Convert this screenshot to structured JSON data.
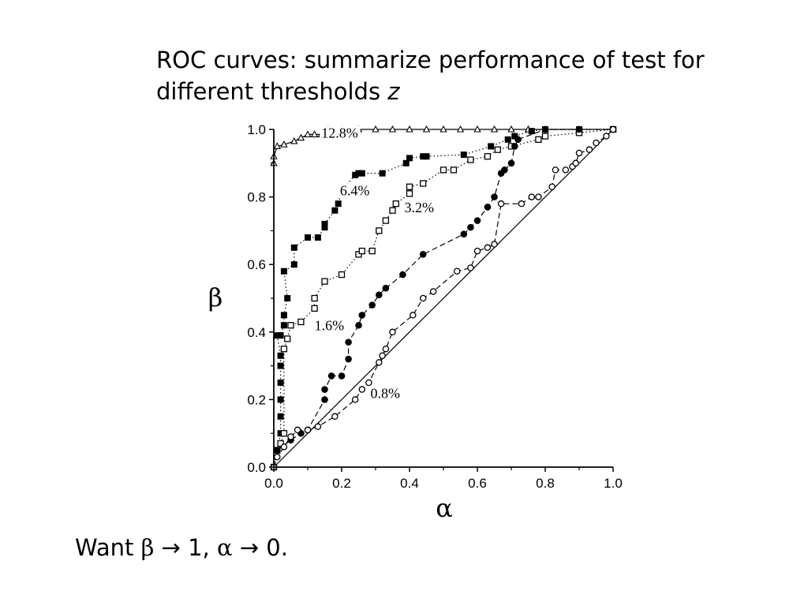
{
  "title": {
    "text": "ROC curves: summarize performance of test for different thresholds ",
    "var": "z"
  },
  "note": {
    "prefix": "Want ",
    "beta": "β",
    "mid": " → 1, ",
    "alpha": "α",
    "suffix": " → 0."
  },
  "chart_data": {
    "type": "line",
    "xlabel": "α",
    "ylabel": "β",
    "xlim": [
      0,
      1
    ],
    "ylim": [
      0,
      1
    ],
    "xticks": [
      "0.0",
      "0.2",
      "0.4",
      "0.6",
      "0.8",
      "1.0"
    ],
    "yticks": [
      "0.0",
      "0.2",
      "0.4",
      "0.6",
      "0.8",
      "1.0"
    ],
    "grid": false,
    "diagonal": true,
    "series": [
      {
        "label": "12.8%",
        "marker": "open-triangle",
        "line": "solid",
        "label_at": [
          0.14,
          0.975
        ],
        "points": [
          [
            0,
            0.9
          ],
          [
            0,
            0.92
          ],
          [
            0.01,
            0.95
          ],
          [
            0.03,
            0.955
          ],
          [
            0.06,
            0.965
          ],
          [
            0.08,
            0.975
          ],
          [
            0.1,
            0.985
          ],
          [
            0.12,
            0.985
          ],
          [
            0.14,
            0.985
          ],
          [
            0.15,
            0.99
          ],
          [
            0.16,
            1.0
          ],
          [
            0.2,
            1.0
          ],
          [
            0.25,
            1.0
          ],
          [
            0.3,
            1.0
          ],
          [
            0.35,
            1.0
          ],
          [
            0.4,
            1.0
          ],
          [
            0.45,
            1.0
          ],
          [
            0.5,
            1.0
          ],
          [
            0.55,
            1.0
          ],
          [
            0.6,
            1.0
          ],
          [
            0.65,
            1.0
          ],
          [
            0.7,
            1.0
          ],
          [
            0.75,
            1.0
          ],
          [
            0.8,
            1.0
          ],
          [
            0.9,
            1.0
          ],
          [
            1.0,
            1.0
          ]
        ]
      },
      {
        "label": "6.4%",
        "marker": "filled-square",
        "line": "dotted",
        "label_at": [
          0.195,
          0.805
        ],
        "points": [
          [
            0,
            0.0
          ],
          [
            0.01,
            0.05
          ],
          [
            0.02,
            0.1
          ],
          [
            0.02,
            0.15
          ],
          [
            0.02,
            0.2
          ],
          [
            0.02,
            0.25
          ],
          [
            0.02,
            0.3
          ],
          [
            0.02,
            0.33
          ],
          [
            0.01,
            0.39
          ],
          [
            0.02,
            0.39
          ],
          [
            0.03,
            0.42
          ],
          [
            0.03,
            0.45
          ],
          [
            0.04,
            0.5
          ],
          [
            0.03,
            0.58
          ],
          [
            0.06,
            0.6
          ],
          [
            0.06,
            0.65
          ],
          [
            0.1,
            0.68
          ],
          [
            0.13,
            0.68
          ],
          [
            0.15,
            0.71
          ],
          [
            0.15,
            0.72
          ],
          [
            0.18,
            0.76
          ],
          [
            0.19,
            0.78
          ],
          [
            0.2,
            0.82
          ],
          [
            0.24,
            0.865
          ],
          [
            0.25,
            0.87
          ],
          [
            0.26,
            0.87
          ],
          [
            0.32,
            0.87
          ],
          [
            0.39,
            0.9
          ],
          [
            0.4,
            0.915
          ],
          [
            0.44,
            0.92
          ],
          [
            0.45,
            0.92
          ],
          [
            0.56,
            0.925
          ],
          [
            0.64,
            0.95
          ],
          [
            0.69,
            0.97
          ],
          [
            0.71,
            0.98
          ],
          [
            0.76,
            0.995
          ],
          [
            0.8,
            1.0
          ],
          [
            0.9,
            1.0
          ],
          [
            1.0,
            1.0
          ]
        ]
      },
      {
        "label": "3.2%",
        "marker": "open-square",
        "line": "dotted",
        "label_at": [
          0.385,
          0.755
        ],
        "points": [
          [
            0,
            0.0
          ],
          [
            0.01,
            0.05
          ],
          [
            0.02,
            0.07
          ],
          [
            0.03,
            0.1
          ],
          [
            0.03,
            0.35
          ],
          [
            0.04,
            0.38
          ],
          [
            0.05,
            0.42
          ],
          [
            0.08,
            0.43
          ],
          [
            0.12,
            0.47
          ],
          [
            0.12,
            0.5
          ],
          [
            0.15,
            0.55
          ],
          [
            0.2,
            0.57
          ],
          [
            0.25,
            0.63
          ],
          [
            0.26,
            0.64
          ],
          [
            0.29,
            0.64
          ],
          [
            0.31,
            0.7
          ],
          [
            0.33,
            0.73
          ],
          [
            0.35,
            0.76
          ],
          [
            0.36,
            0.78
          ],
          [
            0.4,
            0.81
          ],
          [
            0.4,
            0.83
          ],
          [
            0.44,
            0.84
          ],
          [
            0.5,
            0.88
          ],
          [
            0.53,
            0.88
          ],
          [
            0.58,
            0.91
          ],
          [
            0.63,
            0.92
          ],
          [
            0.66,
            0.94
          ],
          [
            0.7,
            0.95
          ],
          [
            0.78,
            0.97
          ],
          [
            0.8,
            0.98
          ],
          [
            0.9,
            0.99
          ],
          [
            1.0,
            1.0
          ]
        ]
      },
      {
        "label": "1.6%",
        "marker": "filled-circle",
        "line": "dashed",
        "label_at": [
          0.12,
          0.405
        ],
        "points": [
          [
            0,
            0.0
          ],
          [
            0.01,
            0.05
          ],
          [
            0.05,
            0.08
          ],
          [
            0.08,
            0.1
          ],
          [
            0.1,
            0.11
          ],
          [
            0.15,
            0.2
          ],
          [
            0.15,
            0.23
          ],
          [
            0.17,
            0.27
          ],
          [
            0.2,
            0.27
          ],
          [
            0.22,
            0.32
          ],
          [
            0.22,
            0.37
          ],
          [
            0.25,
            0.42
          ],
          [
            0.26,
            0.45
          ],
          [
            0.29,
            0.48
          ],
          [
            0.31,
            0.51
          ],
          [
            0.33,
            0.53
          ],
          [
            0.38,
            0.57
          ],
          [
            0.44,
            0.63
          ],
          [
            0.56,
            0.69
          ],
          [
            0.58,
            0.71
          ],
          [
            0.6,
            0.73
          ],
          [
            0.63,
            0.77
          ],
          [
            0.65,
            0.8
          ],
          [
            0.67,
            0.87
          ],
          [
            0.68,
            0.88
          ],
          [
            0.7,
            0.9
          ],
          [
            0.71,
            0.95
          ],
          [
            0.72,
            0.97
          ],
          [
            0.8,
            1.0
          ],
          [
            0.9,
            1.0
          ],
          [
            1.0,
            1.0
          ]
        ]
      },
      {
        "label": "0.8%",
        "marker": "open-circle",
        "line": "dashed",
        "label_at": [
          0.285,
          0.205
        ],
        "points": [
          [
            0,
            0.0
          ],
          [
            0.01,
            0.03
          ],
          [
            0.03,
            0.06
          ],
          [
            0.05,
            0.09
          ],
          [
            0.07,
            0.11
          ],
          [
            0.1,
            0.11
          ],
          [
            0.13,
            0.12
          ],
          [
            0.18,
            0.15
          ],
          [
            0.24,
            0.2
          ],
          [
            0.26,
            0.23
          ],
          [
            0.28,
            0.25
          ],
          [
            0.31,
            0.31
          ],
          [
            0.32,
            0.33
          ],
          [
            0.33,
            0.35
          ],
          [
            0.35,
            0.4
          ],
          [
            0.41,
            0.45
          ],
          [
            0.44,
            0.5
          ],
          [
            0.47,
            0.52
          ],
          [
            0.54,
            0.58
          ],
          [
            0.58,
            0.59
          ],
          [
            0.6,
            0.64
          ],
          [
            0.63,
            0.65
          ],
          [
            0.65,
            0.66
          ],
          [
            0.67,
            0.78
          ],
          [
            0.73,
            0.78
          ],
          [
            0.76,
            0.8
          ],
          [
            0.78,
            0.8
          ],
          [
            0.82,
            0.83
          ],
          [
            0.83,
            0.88
          ],
          [
            0.86,
            0.88
          ],
          [
            0.88,
            0.89
          ],
          [
            0.89,
            0.9
          ],
          [
            0.9,
            0.93
          ],
          [
            0.93,
            0.94
          ],
          [
            0.95,
            0.96
          ],
          [
            0.98,
            0.98
          ],
          [
            1.0,
            1.0
          ]
        ]
      }
    ]
  }
}
